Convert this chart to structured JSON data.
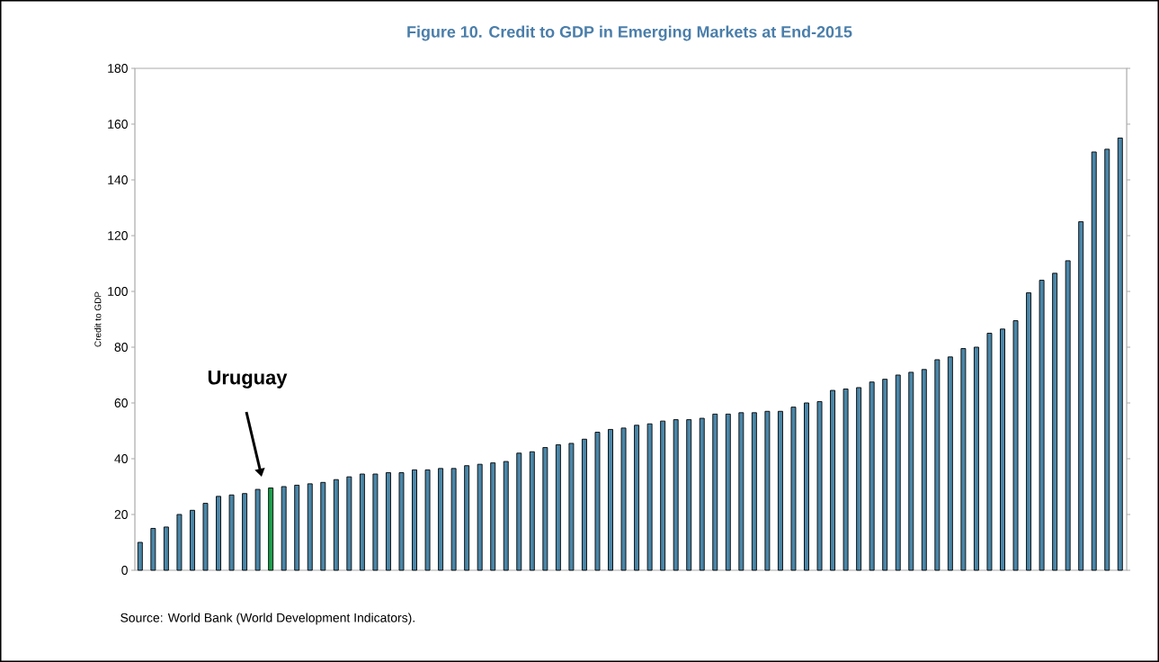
{
  "chart_data": {
    "type": "bar",
    "title": "Figure 10. Credit to GDP in Emerging Markets at End-2015",
    "ylabel": "Credit to GDP",
    "categories": [
      null,
      null,
      null,
      null,
      null,
      null,
      null,
      null,
      null,
      null,
      null,
      null,
      null,
      null,
      null,
      null,
      null,
      null,
      null,
      null,
      null,
      null,
      null,
      null,
      null,
      null,
      null,
      null,
      null,
      null,
      null,
      null,
      null,
      null,
      null,
      null,
      null,
      null,
      null,
      null,
      null,
      null,
      null,
      null,
      null,
      null,
      null,
      null,
      null,
      null,
      null,
      null,
      null,
      null,
      null,
      null,
      null,
      null,
      null,
      null,
      null,
      null,
      null,
      null,
      null,
      null,
      null,
      null,
      null,
      null,
      null,
      null,
      null,
      null,
      null,
      null
    ],
    "values": [
      10,
      15,
      15.5,
      20,
      21.5,
      24,
      26.5,
      27,
      27.5,
      29,
      29.5,
      30,
      30.5,
      31,
      31.5,
      32.5,
      33.5,
      34.5,
      34.5,
      35,
      35,
      36,
      36,
      36.5,
      36.5,
      37.5,
      38,
      38.5,
      39,
      42,
      42.5,
      44,
      45,
      45.5,
      47,
      49.5,
      50.5,
      51,
      52,
      52.5,
      53.5,
      54,
      54,
      54.5,
      56,
      56,
      56.5,
      56.5,
      57,
      57,
      58.5,
      60,
      60.5,
      64.5,
      65,
      65.5,
      67.5,
      68.5,
      70,
      71,
      72,
      75.5,
      76.5,
      79.5,
      80,
      85,
      86.5,
      89.5,
      99.5,
      104,
      106.5,
      111,
      125,
      150,
      151,
      155
    ],
    "colors": [
      "#4a86a8",
      "#4a86a8",
      "#4a86a8",
      "#4a86a8",
      "#4a86a8",
      "#4a86a8",
      "#4a86a8",
      "#4a86a8",
      "#4a86a8",
      "#4a86a8",
      "#1aa04a",
      "#4a86a8",
      "#4a86a8",
      "#4a86a8",
      "#4a86a8",
      "#4a86a8",
      "#4a86a8",
      "#4a86a8",
      "#4a86a8",
      "#4a86a8",
      "#4a86a8",
      "#4a86a8",
      "#4a86a8",
      "#4a86a8",
      "#4a86a8",
      "#4a86a8",
      "#4a86a8",
      "#4a86a8",
      "#4a86a8",
      "#4a86a8",
      "#4a86a8",
      "#4a86a8",
      "#4a86a8",
      "#4a86a8",
      "#4a86a8",
      "#4a86a8",
      "#4a86a8",
      "#4a86a8",
      "#4a86a8",
      "#4a86a8",
      "#4a86a8",
      "#4a86a8",
      "#4a86a8",
      "#4a86a8",
      "#4a86a8",
      "#4a86a8",
      "#4a86a8",
      "#4a86a8",
      "#4a86a8",
      "#4a86a8",
      "#4a86a8",
      "#4a86a8",
      "#4a86a8",
      "#4a86a8",
      "#4a86a8",
      "#4a86a8",
      "#4a86a8",
      "#4a86a8",
      "#4a86a8",
      "#4a86a8",
      "#4a86a8",
      "#4a86a8",
      "#4a86a8",
      "#4a86a8",
      "#4a86a8",
      "#4a86a8",
      "#4a86a8",
      "#4a86a8",
      "#4a86a8",
      "#4a86a8",
      "#4a86a8",
      "#4a86a8",
      "#4a86a8",
      "#4a86a8",
      "#4a86a8",
      "#4a86a8"
    ],
    "ylim": [
      0,
      180
    ],
    "yticks": [
      0,
      20,
      40,
      60,
      80,
      100,
      120,
      140,
      160,
      180
    ],
    "annotations": [
      "Uruguay",
      "Source: World Bank (World Development Indicators)."
    ]
  }
}
